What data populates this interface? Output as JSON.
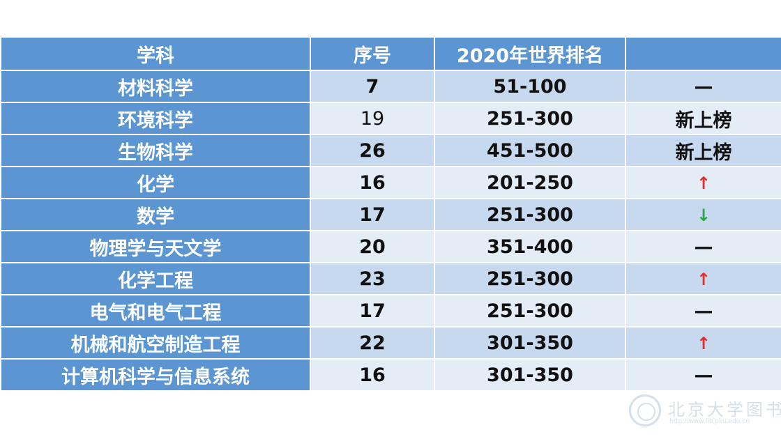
{
  "table": {
    "headers": [
      "学科",
      "序号",
      "2020年世界排名",
      ""
    ],
    "rows": [
      {
        "subject": "材料科学",
        "index": "7",
        "rank": "51-100",
        "change": "—",
        "change_type": "dash"
      },
      {
        "subject": "环境科学",
        "index": "19",
        "rank": "251-300",
        "change": "新上榜",
        "change_type": "text"
      },
      {
        "subject": "生物科学",
        "index": "26",
        "rank": "451-500",
        "change": "新上榜",
        "change_type": "text"
      },
      {
        "subject": "化学",
        "index": "16",
        "rank": "201-250",
        "change": "↑",
        "change_type": "up"
      },
      {
        "subject": "数学",
        "index": "17",
        "rank": "251-300",
        "change": "↓",
        "change_type": "down"
      },
      {
        "subject": "物理学与天文学",
        "index": "20",
        "rank": "351-400",
        "change": "—",
        "change_type": "dash"
      },
      {
        "subject": "化学工程",
        "index": "23",
        "rank": "251-300",
        "change": "↑",
        "change_type": "up"
      },
      {
        "subject": "电气和电气工程",
        "index": "17",
        "rank": "251-300",
        "change": "—",
        "change_type": "dash"
      },
      {
        "subject": "机械和航空制造工程",
        "index": "22",
        "rank": "301-350",
        "change": "↑",
        "change_type": "up"
      },
      {
        "subject": "计算机科学与信息系统",
        "index": "16",
        "rank": "301-350",
        "change": "—",
        "change_type": "dash"
      }
    ]
  },
  "colors": {
    "header_bg": "#5b96d2",
    "subject_bg": "#5b96d2",
    "row_odd_bg": "#c7d9ee",
    "row_even_bg": "#e4ecf6",
    "arrow_up": "#e0302c",
    "arrow_down": "#2ea34a"
  },
  "watermark": {
    "text": "北京大学图书馆",
    "url": "http://www.lib.pku.edu.cn"
  }
}
